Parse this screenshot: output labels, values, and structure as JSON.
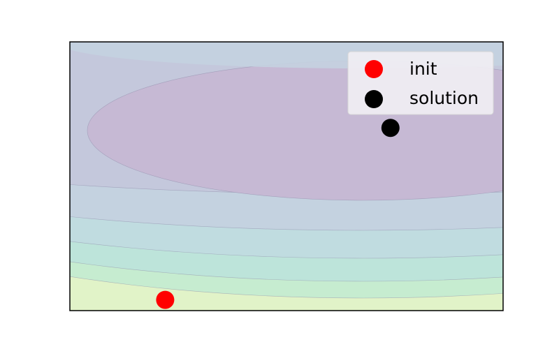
{
  "chart_data": {
    "type": "scatter",
    "title": "",
    "xlabel": "",
    "ylabel": "",
    "grid": false,
    "ticks_visible": false,
    "legend_placement": "top-right",
    "background": "contour-filled",
    "contour_colors": [
      "#c6b9d4",
      "#c4c8dc",
      "#c4d2e0",
      "#c0dce0",
      "#bde4da",
      "#c6ecd0",
      "#e1f3c8"
    ],
    "series": [
      {
        "name": "init",
        "color": "#ff0000",
        "points": [
          [
            0.22,
            0.04
          ]
        ]
      },
      {
        "name": "solution",
        "color": "#000000",
        "points": [
          [
            0.74,
            0.68
          ]
        ]
      }
    ]
  }
}
